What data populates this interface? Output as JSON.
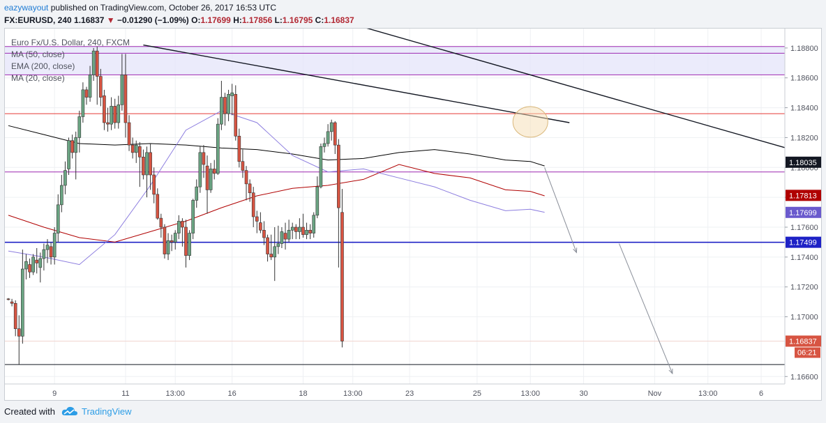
{
  "header": {
    "author": "eazywayout",
    "published_text": "published on TradingView.com, October 26, 2017 16:53 UTC",
    "symbol": "FX:EURUSD, 240",
    "last_price": "1.16837",
    "change_arrow": "▼",
    "change_text": "−0.01290 (−1.09%)",
    "open_label": "O:",
    "open_value": "1.17699",
    "high_label": "H:",
    "high_value": "1.17856",
    "low_label": "L:",
    "low_value": "1.16795",
    "close_label": "C:",
    "close_value": "1.16837"
  },
  "legend": {
    "title": "Euro Fx/U.S. Dollar, 240, FXCM",
    "ma50": "MA (50, close)",
    "ema200": "EMA (200, close)",
    "ma20": "MA (20, close)"
  },
  "footer": {
    "created_with": "Created with",
    "brand": "TradingView"
  },
  "colors": {
    "up": "#6ba583",
    "down": "#d75442",
    "ma50": "#000000",
    "ema200": "#b00000",
    "ma20": "#8c7ddf",
    "hline_red": "#e53935",
    "hline_purple": "#9c27b0",
    "hline_blue": "#1e22c6",
    "zone": "#e6e6fa"
  },
  "chart_data": {
    "type": "candlestick",
    "symbol": "Euro Fx/U.S. Dollar, 240, FXCM",
    "ylim": [
      1.1655,
      1.1893
    ],
    "y_ticks": [
      "1.18800",
      "1.18600",
      "1.18400",
      "1.18200",
      "1.18000",
      "1.17800",
      "1.17600",
      "1.17400",
      "1.17200",
      "1.17000",
      "1.16600"
    ],
    "x_ticks": [
      "9",
      "11",
      "13:00",
      "16",
      "18",
      "13:00",
      "23",
      "25",
      "13:00",
      "30",
      "Nov",
      "13:00",
      "6"
    ],
    "price_labels": [
      {
        "text": "1.18035",
        "value": 1.18035,
        "bg": "#131722",
        "fg": "#ffffff"
      },
      {
        "text": "1.17813",
        "value": 1.17813,
        "bg": "#b00000",
        "fg": "#ffffff"
      },
      {
        "text": "1.17699",
        "value": 1.17699,
        "bg": "#6a5acd",
        "fg": "#ffffff"
      },
      {
        "text": "1.17499",
        "value": 1.17499,
        "bg": "#1e22c6",
        "fg": "#ffffff"
      },
      {
        "text": "1.16837",
        "value": 1.16837,
        "bg": "#d75442",
        "fg": "#ffffff"
      }
    ],
    "countdown": "06:21",
    "horizontal_levels": [
      {
        "value": 1.1881,
        "color": "purple"
      },
      {
        "value": 1.18765,
        "color": "purple"
      },
      {
        "value": 1.1862,
        "color": "purple"
      },
      {
        "value": 1.1836,
        "color": "red"
      },
      {
        "value": 1.1797,
        "color": "purple"
      },
      {
        "value": 1.17499,
        "color": "blue"
      },
      {
        "value": 1.1668,
        "color": "black"
      },
      {
        "value": 1.16837,
        "color": "pale"
      }
    ],
    "trendlines": [
      {
        "from": {
          "bar": 38,
          "value": 1.1882
        },
        "to": {
          "bar": 158,
          "value": 1.183
        }
      },
      {
        "from": {
          "bar": 94,
          "value": 1.1898
        },
        "to": {
          "bar": 222,
          "value": 1.1811
        }
      }
    ],
    "projection_arrows": [
      {
        "from": {
          "bar": 151,
          "value": 1.18
        },
        "to": {
          "bar": 160,
          "value": 1.1743
        }
      },
      {
        "from": {
          "bar": 172,
          "value": 1.1749
        },
        "to": {
          "bar": 187,
          "value": 1.1662
        }
      }
    ],
    "highlight_circle": {
      "bar": 147,
      "value": 1.18305
    },
    "candles": [
      [
        1.1712,
        1.17125,
        1.1711,
        1.17115
      ],
      [
        1.171,
        1.1712,
        1.1707,
        1.1709
      ],
      [
        1.1709,
        1.1711,
        1.1687,
        1.1692
      ],
      [
        1.1692,
        1.1701,
        1.1668,
        1.1687
      ],
      [
        1.1687,
        1.1745,
        1.1682,
        1.1732
      ],
      [
        1.1732,
        1.1742,
        1.1725,
        1.1737
      ],
      [
        1.1735,
        1.1739,
        1.1726,
        1.173
      ],
      [
        1.173,
        1.1742,
        1.1728,
        1.174
      ],
      [
        1.1738,
        1.1746,
        1.1729,
        1.1736
      ],
      [
        1.1733,
        1.1743,
        1.1723,
        1.1739
      ],
      [
        1.1739,
        1.1749,
        1.1731,
        1.1745
      ],
      [
        1.1745,
        1.1752,
        1.1736,
        1.1748
      ],
      [
        1.1747,
        1.175,
        1.1735,
        1.174
      ],
      [
        1.174,
        1.176,
        1.1735,
        1.1756
      ],
      [
        1.1756,
        1.1782,
        1.175,
        1.1775
      ],
      [
        1.1775,
        1.1795,
        1.177,
        1.1788
      ],
      [
        1.1788,
        1.1804,
        1.1782,
        1.1798
      ],
      [
        1.1799,
        1.182,
        1.1795,
        1.1818
      ],
      [
        1.1818,
        1.1822,
        1.1806,
        1.181
      ],
      [
        1.181,
        1.1824,
        1.1792,
        1.182
      ],
      [
        1.182,
        1.1838,
        1.181,
        1.1834
      ],
      [
        1.1834,
        1.1857,
        1.183,
        1.1852
      ],
      [
        1.1852,
        1.1854,
        1.1842,
        1.1847
      ],
      [
        1.1847,
        1.1868,
        1.1844,
        1.1862
      ],
      [
        1.1862,
        1.188,
        1.1858,
        1.1878
      ],
      [
        1.1878,
        1.1881,
        1.1842,
        1.1861
      ],
      [
        1.1861,
        1.1866,
        1.1841,
        1.1847
      ],
      [
        1.1848,
        1.1852,
        1.1825,
        1.183
      ],
      [
        1.183,
        1.184,
        1.1824,
        1.1829
      ],
      [
        1.1829,
        1.1847,
        1.1825,
        1.1841
      ],
      [
        1.1841,
        1.1846,
        1.1826,
        1.183
      ],
      [
        1.183,
        1.1848,
        1.1826,
        1.1842
      ],
      [
        1.1842,
        1.1876,
        1.1838,
        1.1862
      ],
      [
        1.1862,
        1.1876,
        1.182,
        1.183
      ],
      [
        1.183,
        1.1835,
        1.1811,
        1.1815
      ],
      [
        1.1815,
        1.182,
        1.1806,
        1.181
      ],
      [
        1.181,
        1.1818,
        1.1803,
        1.1815
      ],
      [
        1.1814,
        1.1817,
        1.1787,
        1.1807
      ],
      [
        1.1807,
        1.1812,
        1.1792,
        1.1795
      ],
      [
        1.1795,
        1.1814,
        1.178,
        1.181
      ],
      [
        1.181,
        1.1816,
        1.1785,
        1.1795
      ],
      [
        1.1795,
        1.18,
        1.1776,
        1.1782
      ],
      [
        1.1782,
        1.1786,
        1.1765,
        1.1766
      ],
      [
        1.1766,
        1.1769,
        1.1753,
        1.176
      ],
      [
        1.176,
        1.1762,
        1.1739,
        1.1742
      ],
      [
        1.1742,
        1.1756,
        1.1738,
        1.1751
      ],
      [
        1.1751,
        1.1755,
        1.1744,
        1.175
      ],
      [
        1.175,
        1.1758,
        1.1745,
        1.1756
      ],
      [
        1.1756,
        1.1768,
        1.1752,
        1.1764
      ],
      [
        1.1764,
        1.1766,
        1.1747,
        1.176
      ],
      [
        1.176,
        1.1765,
        1.1733,
        1.1741
      ],
      [
        1.1741,
        1.1758,
        1.1738,
        1.1756
      ],
      [
        1.1756,
        1.1779,
        1.1752,
        1.1778
      ],
      [
        1.1778,
        1.1792,
        1.1773,
        1.1787
      ],
      [
        1.1787,
        1.1814,
        1.1783,
        1.181
      ],
      [
        1.181,
        1.1815,
        1.1793,
        1.1802
      ],
      [
        1.1801,
        1.1808,
        1.1769,
        1.1785
      ],
      [
        1.1785,
        1.1803,
        1.1783,
        1.1799
      ],
      [
        1.1799,
        1.1805,
        1.1792,
        1.1796
      ],
      [
        1.1796,
        1.1833,
        1.1795,
        1.1829
      ],
      [
        1.1829,
        1.1858,
        1.1825,
        1.1847
      ],
      [
        1.1847,
        1.185,
        1.1828,
        1.1836
      ],
      [
        1.1836,
        1.1852,
        1.1831,
        1.1849
      ],
      [
        1.1848,
        1.1856,
        1.1835,
        1.185
      ],
      [
        1.1849,
        1.1855,
        1.1818,
        1.1821
      ],
      [
        1.1821,
        1.1826,
        1.18,
        1.1804
      ],
      [
        1.1804,
        1.1812,
        1.1793,
        1.1798
      ],
      [
        1.1798,
        1.1801,
        1.1778,
        1.1789
      ],
      [
        1.1789,
        1.1792,
        1.1777,
        1.1783
      ],
      [
        1.1783,
        1.1787,
        1.176,
        1.1767
      ],
      [
        1.1767,
        1.1771,
        1.1756,
        1.1764
      ],
      [
        1.1763,
        1.177,
        1.1756,
        1.1758
      ],
      [
        1.1758,
        1.1764,
        1.1748,
        1.1753
      ],
      [
        1.1753,
        1.1755,
        1.1737,
        1.1742
      ],
      [
        1.1742,
        1.1755,
        1.1738,
        1.174
      ],
      [
        1.174,
        1.176,
        1.1724,
        1.1747
      ],
      [
        1.1747,
        1.1761,
        1.1742,
        1.1749
      ],
      [
        1.1749,
        1.176,
        1.1746,
        1.1757
      ],
      [
        1.1756,
        1.1763,
        1.1745,
        1.1752
      ],
      [
        1.1752,
        1.1765,
        1.175,
        1.1758
      ],
      [
        1.1758,
        1.1763,
        1.1752,
        1.176
      ],
      [
        1.176,
        1.1762,
        1.1752,
        1.1757
      ],
      [
        1.1757,
        1.1766,
        1.1752,
        1.176
      ],
      [
        1.176,
        1.1769,
        1.1753,
        1.1755
      ],
      [
        1.1755,
        1.1763,
        1.1752,
        1.1758
      ],
      [
        1.1758,
        1.1762,
        1.1752,
        1.1756
      ],
      [
        1.1756,
        1.177,
        1.1753,
        1.1768
      ],
      [
        1.1768,
        1.1794,
        1.1766,
        1.1787
      ],
      [
        1.1787,
        1.1816,
        1.1786,
        1.1814
      ],
      [
        1.1814,
        1.182,
        1.181,
        1.1816
      ],
      [
        1.1816,
        1.1829,
        1.1814,
        1.1824
      ],
      [
        1.1824,
        1.1832,
        1.1818,
        1.183
      ],
      [
        1.183,
        1.1831,
        1.1809,
        1.1815
      ],
      [
        1.1815,
        1.1819,
        1.1733,
        1.1773
      ],
      [
        1.17699,
        1.17856,
        1.16795,
        1.16837
      ]
    ],
    "moving_averages": [
      {
        "name": "MA (50, close)",
        "color": "black",
        "points": [
          [
            0,
            1.1828
          ],
          [
            10,
            1.1822
          ],
          [
            20,
            1.1816
          ],
          [
            30,
            1.1815
          ],
          [
            40,
            1.1816
          ],
          [
            50,
            1.1815
          ],
          [
            60,
            1.1813
          ],
          [
            70,
            1.1812
          ],
          [
            80,
            1.1809
          ],
          [
            90,
            1.1805
          ],
          [
            100,
            1.1806
          ],
          [
            110,
            1.181
          ],
          [
            120,
            1.1812
          ],
          [
            130,
            1.1809
          ],
          [
            140,
            1.1805
          ],
          [
            147,
            1.1804
          ],
          [
            151,
            1.1801
          ]
        ]
      },
      {
        "name": "EMA (200, close)",
        "color": "darkred",
        "points": [
          [
            0,
            1.1768
          ],
          [
            10,
            1.176
          ],
          [
            20,
            1.1753
          ],
          [
            30,
            1.175
          ],
          [
            40,
            1.1757
          ],
          [
            50,
            1.1764
          ],
          [
            60,
            1.1773
          ],
          [
            70,
            1.1781
          ],
          [
            80,
            1.1786
          ],
          [
            90,
            1.1788
          ],
          [
            100,
            1.1792
          ],
          [
            110,
            1.1802
          ],
          [
            120,
            1.1796
          ],
          [
            130,
            1.1793
          ],
          [
            140,
            1.1785
          ],
          [
            147,
            1.1784
          ],
          [
            151,
            1.1781
          ]
        ]
      },
      {
        "name": "MA (20, close)",
        "color": "violet",
        "points": [
          [
            0,
            1.1744
          ],
          [
            10,
            1.174
          ],
          [
            20,
            1.1735
          ],
          [
            30,
            1.1755
          ],
          [
            40,
            1.1788
          ],
          [
            50,
            1.1825
          ],
          [
            60,
            1.1838
          ],
          [
            70,
            1.183
          ],
          [
            80,
            1.1808
          ],
          [
            90,
            1.1797
          ],
          [
            100,
            1.1799
          ],
          [
            110,
            1.1793
          ],
          [
            120,
            1.1787
          ],
          [
            130,
            1.1778
          ],
          [
            140,
            1.1771
          ],
          [
            147,
            1.1772
          ],
          [
            151,
            1.177
          ]
        ]
      }
    ],
    "grid": true,
    "legend_position": "top-left"
  }
}
